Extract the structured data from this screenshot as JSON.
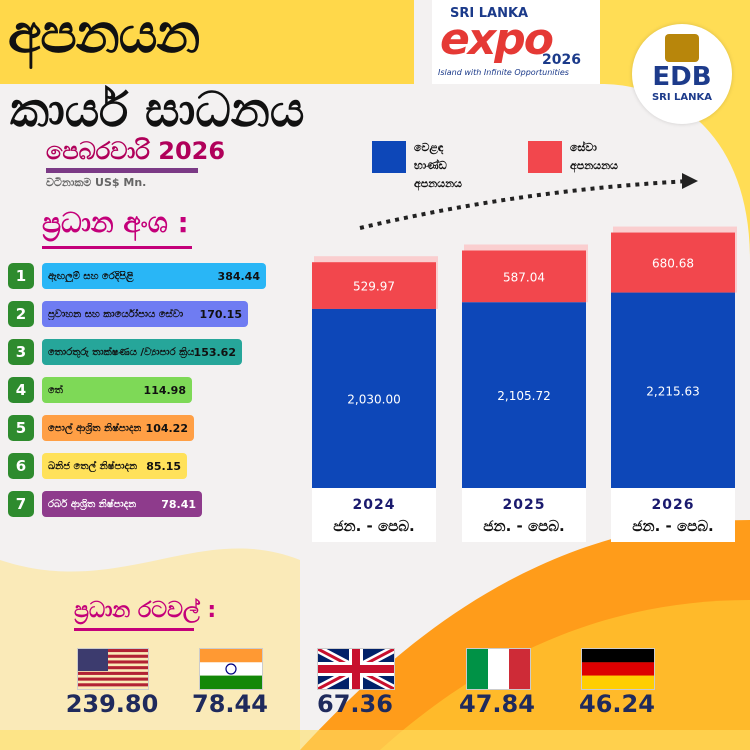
{
  "header": {
    "title": "අපනයන",
    "subtitle": "කාර්ය සාධනය",
    "month": "පෙබරවාරි 2026",
    "units": "වටිනාකම US$ Mn."
  },
  "logos": {
    "expo": {
      "line1": "SRI LANKA",
      "main": "expo",
      "year": "2026",
      "tagline": "Island with Infinite Opportunities"
    },
    "edb": {
      "name": "EDB",
      "sub": "SRI LANKA"
    }
  },
  "products_title": "ප්‍රධාන අංශ :",
  "products": [
    {
      "rank": "1",
      "label": "ඇඟලුම් සහ රෙදිපිළි",
      "value": "384.44",
      "color": "#29b6f6"
    },
    {
      "rank": "2",
      "label": "ප්‍රවාහන සහ කාර්යෝපාය සේවා",
      "value": "170.15",
      "color": "#6f7cf2"
    },
    {
      "rank": "3",
      "label": "තොරතුරු තාක්ෂණය /ව්‍යාපාර ක්‍රියාවලි කළමනාකරණය",
      "value": "153.62",
      "color": "#26a69a"
    },
    {
      "rank": "4",
      "label": "තේ",
      "value": "114.98",
      "color": "#7ed957"
    },
    {
      "rank": "5",
      "label": "පොල් ආශ්‍රිත නිෂ්පාදන",
      "value": "104.22",
      "color": "#ff9f45"
    },
    {
      "rank": "6",
      "label": "ඛනිජ තෙල් නිෂ්පාදන",
      "value": "85.15",
      "color": "#ffe15a"
    },
    {
      "rank": "7",
      "label": "රබර් ආශ්‍රිත නිෂ්පාදන",
      "value": "78.41",
      "color": "#8e3b8c"
    }
  ],
  "chart_data": {
    "type": "bar",
    "stacked": true,
    "categories": [
      "2024",
      "2025",
      "2026"
    ],
    "period_labels": [
      "ජන. - පෙබ.",
      "ජන. - පෙබ.",
      "ජන. - පෙබ."
    ],
    "series": [
      {
        "name": "වෙළඳ භාණ්ඩ අපනයනය",
        "values": [
          2030.0,
          2105.72,
          2215.63
        ],
        "labels": [
          "2,030.00",
          "2,105.72",
          "2,215.63"
        ],
        "color": "#0d47b8"
      },
      {
        "name": "සේවා අපනයනය",
        "values": [
          529.97,
          587.04,
          680.68
        ],
        "labels": [
          "529.97",
          "587.04",
          "680.68"
        ],
        "color": "#f2474d"
      }
    ]
  },
  "countries_title": "ප්‍රධාන රටවල් :",
  "countries": [
    {
      "flag": "usa-flag",
      "value": "239.80"
    },
    {
      "flag": "india-flag",
      "value": "78.44"
    },
    {
      "flag": "uk-flag",
      "value": "67.36"
    },
    {
      "flag": "italy-flag",
      "value": "47.84"
    },
    {
      "flag": "germany-flag",
      "value": "46.24"
    }
  ]
}
